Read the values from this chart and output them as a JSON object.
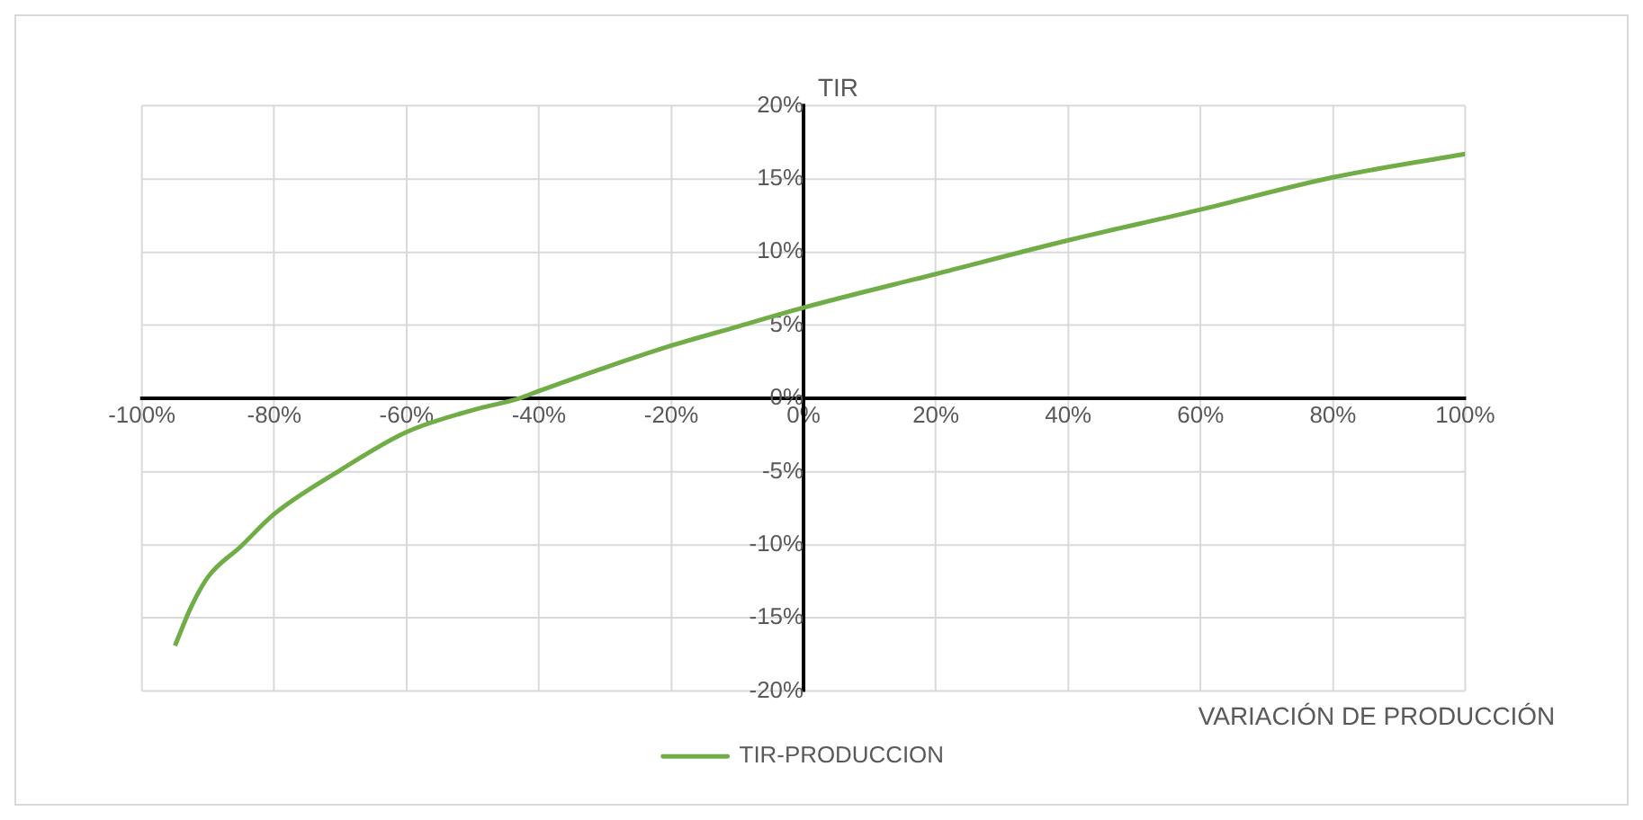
{
  "chart_data": {
    "type": "line",
    "xlabel": "VARIACIÓN DE PRODUCCIÓN",
    "ylabel": "TIR",
    "xlim": [
      -100,
      100
    ],
    "ylim": [
      -20,
      20
    ],
    "xticks": [
      {
        "value": -100,
        "label": "-100%"
      },
      {
        "value": -80,
        "label": "-80%"
      },
      {
        "value": -60,
        "label": "-60%"
      },
      {
        "value": -40,
        "label": "-40%"
      },
      {
        "value": -20,
        "label": "-20%"
      },
      {
        "value": 0,
        "label": "0%"
      },
      {
        "value": 20,
        "label": "20%"
      },
      {
        "value": 40,
        "label": "40%"
      },
      {
        "value": 60,
        "label": "60%"
      },
      {
        "value": 80,
        "label": "80%"
      },
      {
        "value": 100,
        "label": "100%"
      }
    ],
    "yticks": [
      {
        "value": -20,
        "label": "-20%"
      },
      {
        "value": -15,
        "label": "-15%"
      },
      {
        "value": -10,
        "label": "-10%"
      },
      {
        "value": -5,
        "label": "-5%"
      },
      {
        "value": 0,
        "label": "0%"
      },
      {
        "value": 5,
        "label": "5%"
      },
      {
        "value": 10,
        "label": "10%"
      },
      {
        "value": 15,
        "label": "15%"
      },
      {
        "value": 20,
        "label": "20%"
      }
    ],
    "grid": true,
    "legend": "bottom",
    "marker": "none",
    "line_style": "solid",
    "series": [
      {
        "name": "TIR-PRODUCCION",
        "color": "#70ad47",
        "x": [
          -95,
          -92.5,
          -90,
          -85,
          -80,
          -70,
          -60,
          -50,
          -43,
          -40,
          -30,
          -20,
          -10,
          0,
          20,
          40,
          60,
          80,
          100
        ],
        "values": [
          -16.9,
          -14.2,
          -12.2,
          -10.1,
          -7.9,
          -4.9,
          -2.3,
          -0.8,
          0,
          0.5,
          2.1,
          3.6,
          4.9,
          6.2,
          8.5,
          10.8,
          12.9,
          15.1,
          16.7
        ]
      }
    ]
  }
}
